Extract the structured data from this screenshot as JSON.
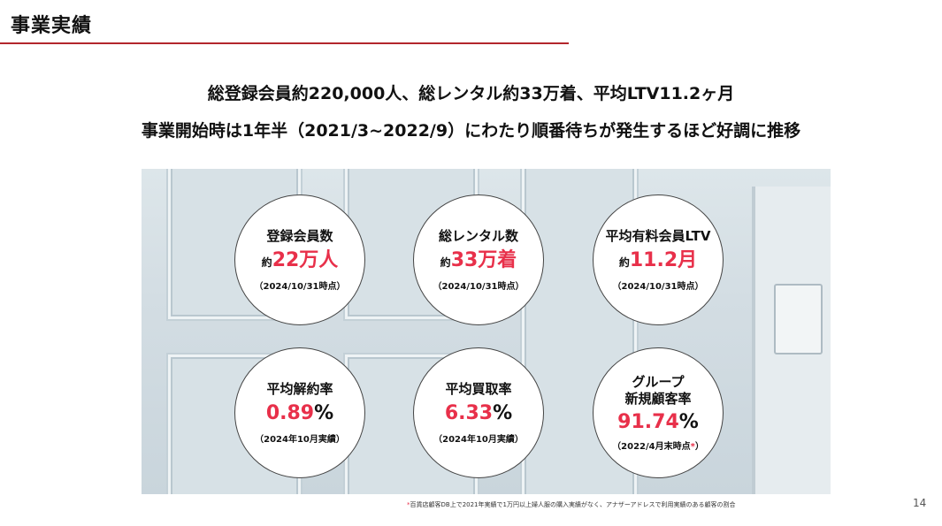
{
  "header": {
    "title": "事業実績"
  },
  "headlines": [
    "総登録会員約220,000人、総レンタル約33万着、平均LTV11.2ヶ月",
    "事業開始時は1年半（2021/3~2022/9）にわたり順番待ちが発生するほど好調に推移"
  ],
  "metrics": [
    {
      "label": "登録会員数",
      "prefix": "約",
      "value": "22万人",
      "unit": "",
      "note": "（2024/10/31時点）"
    },
    {
      "label": "総レンタル数",
      "prefix": "約",
      "value": "33万着",
      "unit": "",
      "note": "（2024/10/31時点）"
    },
    {
      "label": "平均有料会員LTV",
      "prefix": "約",
      "value": "11.2月",
      "unit": "",
      "note": "（2024/10/31時点）"
    },
    {
      "label": "平均解約率",
      "prefix": "",
      "value": "0.89",
      "unit": "%",
      "note": "（2024年10月実績）"
    },
    {
      "label": "平均買取率",
      "prefix": "",
      "value": "6.33",
      "unit": "%",
      "note": "（2024年10月実績）"
    },
    {
      "label": "グループ",
      "label2": "新規顧客率",
      "prefix": "",
      "value": "91.74",
      "unit": "%",
      "note": "（2022/4月末時点",
      "note_mark": "*",
      "note_end": "）"
    }
  ],
  "footnote": {
    "mark": "*",
    "text": "百貨店顧客DB上で2021年実績で1万円以上婦人服の購入実績がなく、アナザーアドレスで利用実績のある顧客の割合"
  },
  "page_number": "14",
  "colors": {
    "accent": "#e8304a",
    "rule": "#b3262c"
  }
}
